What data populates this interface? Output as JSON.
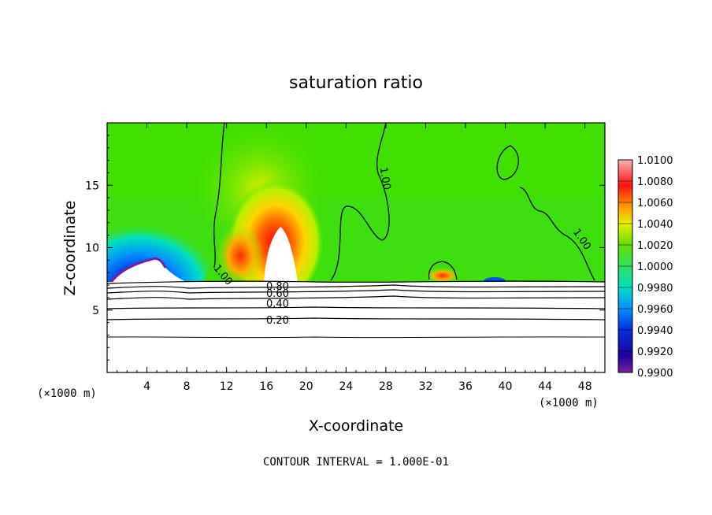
{
  "chart_data": {
    "type": "heatmap",
    "title": "saturation ratio",
    "xlabel": "X-coordinate",
    "ylabel": "Z-coordinate",
    "x_unit": "(×1000 m)",
    "y_unit": "(×1000 m)",
    "xlim": [
      0,
      50
    ],
    "ylim": [
      0,
      20
    ],
    "x_ticks": [
      "4",
      "8",
      "12",
      "16",
      "20",
      "24",
      "28",
      "32",
      "36",
      "40",
      "44",
      "48"
    ],
    "y_ticks": [
      "5",
      "10",
      "15"
    ],
    "colorbar": {
      "labels": [
        "1.0100",
        "1.0080",
        "1.0060",
        "1.0040",
        "1.0020",
        "1.0000",
        "0.9980",
        "0.9960",
        "0.9940",
        "0.9920",
        "0.9900"
      ],
      "min": 0.99,
      "max": 1.01
    },
    "contour_labels": [
      "1.00",
      "1.00",
      "1.00",
      "0.80",
      "0.60",
      "0.40",
      "0.20"
    ],
    "footer": "CONTOUR INTERVAL = 1.000E-01"
  }
}
